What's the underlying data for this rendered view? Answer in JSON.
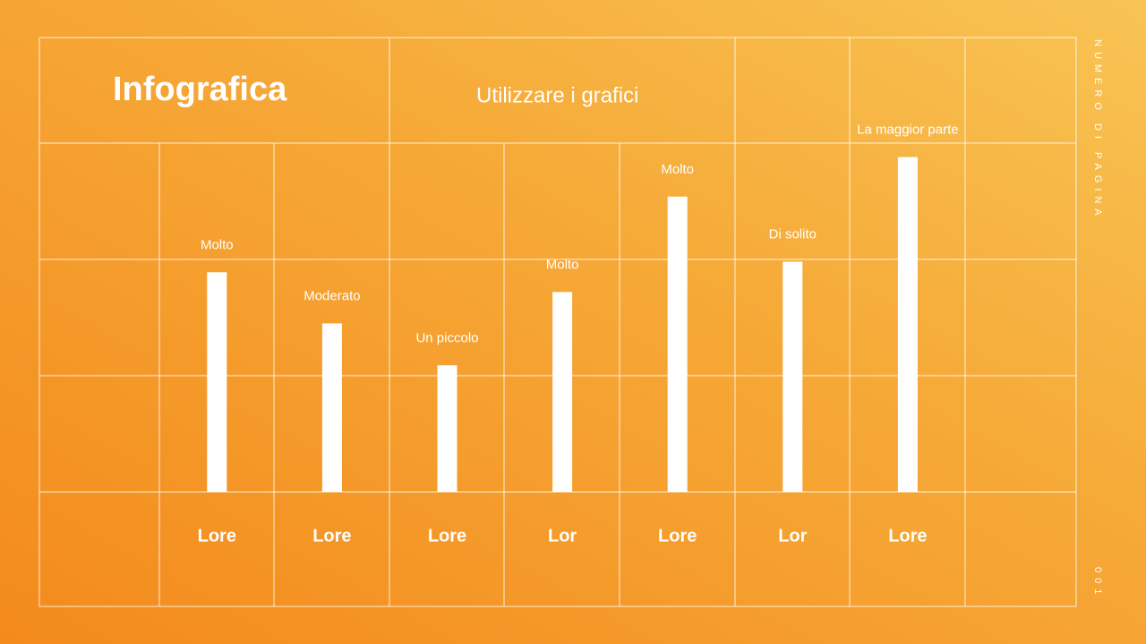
{
  "chart_data": {
    "type": "bar",
    "title": "Infografica",
    "subtitle": "Utilizzare i grafici",
    "categories": [
      "Lore",
      "Lore",
      "Lore",
      "Lor",
      "Lore",
      "Lor",
      "Lore"
    ],
    "values": [
      1.89,
      1.45,
      1.09,
      1.72,
      2.54,
      1.98,
      2.88
    ],
    "bar_labels": [
      "Molto",
      "Moderato",
      "Un piccolo",
      "Molto",
      "Molto",
      "Di solito",
      "La maggior parte"
    ],
    "color": "#ffffff",
    "ylim": [
      0,
      3
    ]
  },
  "side_label": "NUMERO DI PAGINA",
  "page_number": "001"
}
